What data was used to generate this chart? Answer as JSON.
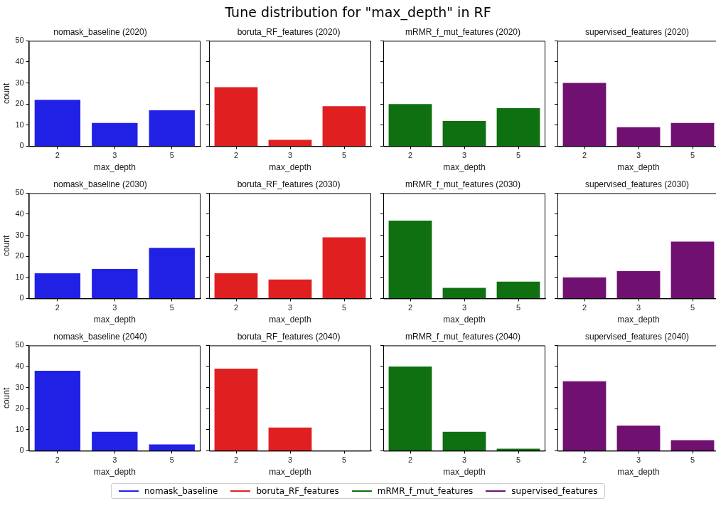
{
  "chart_data": [
    {
      "type": "other",
      "title": "Tune distribution for \"max_depth\" in RF"
    },
    {
      "type": "bar",
      "title": "nomask_baseline (2020)",
      "categories": [
        "2",
        "3",
        "5"
      ],
      "values": [
        22,
        11,
        17
      ],
      "color": "#2121e6",
      "ylim": [
        0,
        50
      ],
      "yticks": [
        0,
        10,
        20,
        30,
        40,
        50
      ],
      "xlabel": "max_depth",
      "ylabel": "count",
      "grid": false
    },
    {
      "type": "bar",
      "title": "boruta_RF_features (2020)",
      "categories": [
        "2",
        "3",
        "5"
      ],
      "values": [
        28,
        3,
        19
      ],
      "color": "#e02020",
      "ylim": [
        0,
        50
      ],
      "yticks": [
        0,
        10,
        20,
        30,
        40,
        50
      ],
      "xlabel": "max_depth",
      "tick_labels": "x",
      "grid": false
    },
    {
      "type": "bar",
      "title": "mRMR_f_mut_features (2020)",
      "categories": [
        "2",
        "3",
        "5"
      ],
      "values": [
        20,
        12,
        18
      ],
      "color": "#0e7010",
      "ylim": [
        0,
        50
      ],
      "yticks": [
        0,
        10,
        20,
        30,
        40,
        50
      ],
      "xlabel": "max_depth",
      "tick_labels": "x",
      "grid": false
    },
    {
      "type": "bar",
      "title": "supervised_features (2020)",
      "categories": [
        "2",
        "3",
        "5"
      ],
      "values": [
        30,
        9,
        11
      ],
      "color": "#701070",
      "ylim": [
        0,
        50
      ],
      "yticks": [
        0,
        10,
        20,
        30,
        40,
        50
      ],
      "xlabel": "max_depth",
      "tick_labels": "x",
      "grid": false
    },
    {
      "type": "bar",
      "title": "nomask_baseline (2030)",
      "categories": [
        "2",
        "3",
        "5"
      ],
      "values": [
        12,
        14,
        24
      ],
      "color": "#2121e6",
      "ylim": [
        0,
        50
      ],
      "yticks": [
        0,
        10,
        20,
        30,
        40,
        50
      ],
      "xlabel": "max_depth",
      "ylabel": "count",
      "grid": false
    },
    {
      "type": "bar",
      "title": "boruta_RF_features (2030)",
      "categories": [
        "2",
        "3",
        "5"
      ],
      "values": [
        12,
        9,
        29
      ],
      "color": "#e02020",
      "ylim": [
        0,
        50
      ],
      "yticks": [
        0,
        10,
        20,
        30,
        40,
        50
      ],
      "xlabel": "max_depth",
      "tick_labels": "x",
      "grid": false
    },
    {
      "type": "bar",
      "title": "mRMR_f_mut_features (2030)",
      "categories": [
        "2",
        "3",
        "5"
      ],
      "values": [
        37,
        5,
        8
      ],
      "color": "#0e7010",
      "ylim": [
        0,
        50
      ],
      "yticks": [
        0,
        10,
        20,
        30,
        40,
        50
      ],
      "xlabel": "max_depth",
      "tick_labels": "x",
      "grid": false
    },
    {
      "type": "bar",
      "title": "supervised_features (2030)",
      "categories": [
        "2",
        "3",
        "5"
      ],
      "values": [
        10,
        13,
        27
      ],
      "color": "#701070",
      "ylim": [
        0,
        50
      ],
      "yticks": [
        0,
        10,
        20,
        30,
        40,
        50
      ],
      "xlabel": "max_depth",
      "tick_labels": "x",
      "grid": false
    },
    {
      "type": "bar",
      "title": "nomask_baseline (2040)",
      "categories": [
        "2",
        "3",
        "5"
      ],
      "series": [
        {
          "name": "nomask_baseline",
          "color": "#2121e6",
          "values": [
            38,
            9,
            3
          ]
        }
      ],
      "ylim": [
        0,
        50
      ],
      "yticks": [
        0,
        10,
        20,
        30,
        40,
        50
      ],
      "xlabel": "max_depth",
      "ylabel": "count",
      "grid": false,
      "legend": "bottom"
    },
    {
      "type": "bar",
      "title": "boruta_RF_features (2040)",
      "categories": [
        "2",
        "3",
        "5"
      ],
      "series": [
        {
          "name": "boruta_RF_features",
          "color": "#e02020",
          "values": [
            39,
            11,
            0
          ]
        }
      ],
      "ylim": [
        0,
        50
      ],
      "yticks": [
        0,
        10,
        20,
        30,
        40,
        50
      ],
      "xlabel": "max_depth",
      "tick_labels": "x",
      "grid": false,
      "legend": "bottom"
    },
    {
      "type": "bar",
      "title": "mRMR_f_mut_features (2040)",
      "categories": [
        "2",
        "3",
        "5"
      ],
      "series": [
        {
          "name": "mRMR_f_mut_features",
          "color": "#0e7010",
          "values": [
            40,
            9,
            1
          ]
        }
      ],
      "ylim": [
        0,
        50
      ],
      "yticks": [
        0,
        10,
        20,
        30,
        40,
        50
      ],
      "xlabel": "max_depth",
      "tick_labels": "x",
      "grid": false,
      "legend": "bottom"
    },
    {
      "type": "bar",
      "title": "supervised_features (2040)",
      "categories": [
        "2",
        "3",
        "5"
      ],
      "series": [
        {
          "name": "supervised_features",
          "color": "#701070",
          "values": [
            33,
            12,
            5
          ]
        }
      ],
      "ylim": [
        0,
        50
      ],
      "yticks": [
        0,
        10,
        20,
        30,
        40,
        50
      ],
      "xlabel": "max_depth",
      "tick_labels": "x",
      "grid": false,
      "legend": "bottom"
    }
  ]
}
